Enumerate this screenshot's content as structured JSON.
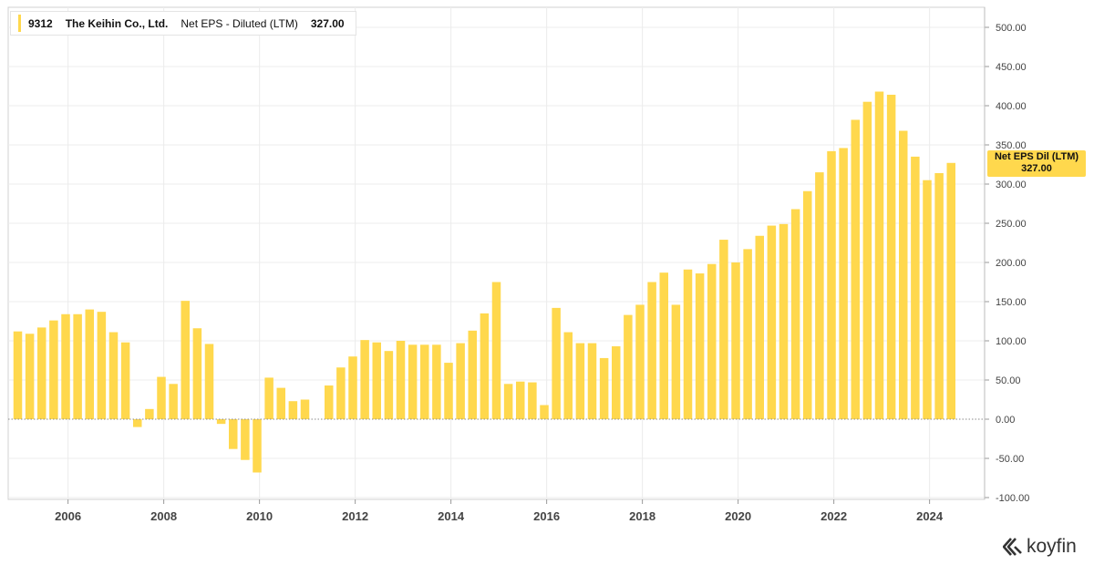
{
  "legend": {
    "ticker": "9312",
    "company": "The Keihin Co., Ltd.",
    "metric": "Net EPS - Diluted (LTM)",
    "value": "327.00",
    "swatch_color": "#ffd84d"
  },
  "value_tag": {
    "label": "Net EPS Dil (LTM)",
    "value": "327.00"
  },
  "brand": {
    "name": "koyfin",
    "icon": "koyfin-logo-icon"
  },
  "colors": {
    "bar": "#ffd84d",
    "grid": "#ececec",
    "axis": "#444444",
    "zero_line": "#8a8a8a"
  },
  "chart_data": {
    "type": "bar",
    "series": [
      {
        "name": "Net EPS - Diluted (LTM)",
        "x": [
          2004.95,
          2005.2,
          2005.45,
          2005.7,
          2005.95,
          2006.2,
          2006.45,
          2006.7,
          2006.95,
          2007.2,
          2007.45,
          2007.7,
          2007.95,
          2008.2,
          2008.45,
          2008.7,
          2008.95,
          2009.2,
          2009.45,
          2009.7,
          2009.95,
          2010.2,
          2010.45,
          2010.7,
          2010.95,
          2011.2,
          2011.45,
          2011.7,
          2011.95,
          2012.2,
          2012.45,
          2012.7,
          2012.95,
          2013.2,
          2013.45,
          2013.7,
          2013.95,
          2014.2,
          2014.45,
          2014.7,
          2014.95,
          2015.2,
          2015.45,
          2015.7,
          2015.95,
          2016.2,
          2016.45,
          2016.7,
          2016.95,
          2017.2,
          2017.45,
          2017.7,
          2017.95,
          2018.2,
          2018.45,
          2018.7,
          2018.95,
          2019.2,
          2019.45,
          2019.7,
          2019.95,
          2020.2,
          2020.45,
          2020.7,
          2020.95,
          2021.2,
          2021.45,
          2021.7,
          2021.95,
          2022.2,
          2022.45,
          2022.7,
          2022.95,
          2023.2,
          2023.45,
          2023.7,
          2023.95,
          2024.2,
          2024.45
        ],
        "values": [
          112,
          109,
          117,
          126,
          134,
          134,
          140,
          137,
          111,
          98,
          -10,
          13,
          54,
          45,
          151,
          116,
          96,
          -6,
          -38,
          -52,
          -68,
          53,
          40,
          23,
          25,
          null,
          43,
          66,
          80,
          101,
          98,
          87,
          100,
          95,
          95,
          95,
          72,
          97,
          113,
          135,
          175,
          45,
          48,
          47,
          18,
          142,
          111,
          97,
          97,
          78,
          93,
          133,
          146,
          175,
          187,
          146,
          191,
          186,
          198,
          229,
          200,
          217,
          234,
          247,
          249,
          268,
          291,
          315,
          342,
          346,
          382,
          405,
          418,
          414,
          368,
          335,
          305,
          314,
          327
        ]
      }
    ],
    "title": "",
    "xlabel": "",
    "ylabel": "",
    "xlim": [
      2004.75,
      2025.15
    ],
    "ylim": [
      -100,
      500
    ],
    "x_ticks": [
      2006,
      2008,
      2010,
      2012,
      2014,
      2016,
      2018,
      2020,
      2022,
      2024
    ],
    "x_tick_labels": [
      "2006",
      "2008",
      "2010",
      "2012",
      "2014",
      "2016",
      "2018",
      "2020",
      "2022",
      "2024"
    ],
    "y_ticks": [
      500,
      450,
      400,
      350,
      300,
      250,
      200,
      150,
      100,
      50,
      0,
      -50,
      -100
    ],
    "y_tick_labels": [
      "500.00",
      "450.00",
      "400.00",
      "350.00",
      "300.00",
      "250.00",
      "200.00",
      "150.00",
      "100.00",
      "50.00",
      "0.00",
      "-50.00",
      "-100.00"
    ],
    "grid": true,
    "y_axis_side": "right",
    "legend_position": "top-left"
  }
}
